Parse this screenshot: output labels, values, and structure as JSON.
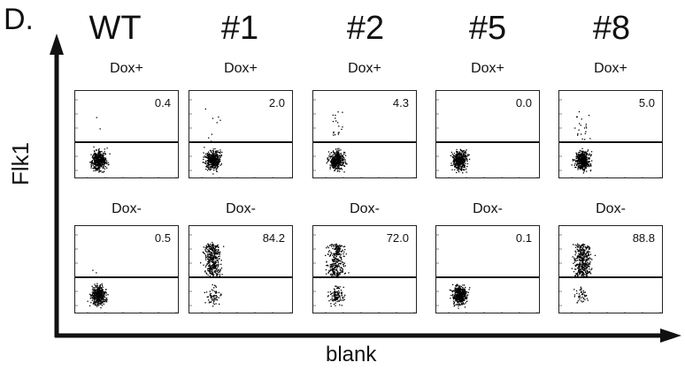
{
  "panel_label": "D.",
  "y_axis_title": "Flk1",
  "x_axis_title": "blank",
  "columns": [
    {
      "title": "WT",
      "top_condition": "Dox+",
      "bottom_condition": "Dox-",
      "top_value": "0.4",
      "bottom_value": "0.5"
    },
    {
      "title": "#1",
      "top_condition": "Dox+",
      "bottom_condition": "Dox-",
      "top_value": "2.0",
      "bottom_value": "84.2"
    },
    {
      "title": "#2",
      "top_condition": "Dox+",
      "bottom_condition": "Dox-",
      "top_value": "4.3",
      "bottom_value": "72.0"
    },
    {
      "title": "#5",
      "top_condition": "Dox+",
      "bottom_condition": "Dox-",
      "top_value": "0.0",
      "bottom_value": "0.1"
    },
    {
      "title": "#8",
      "top_condition": "Dox+",
      "bottom_condition": "Dox-",
      "top_value": "5.0",
      "bottom_value": "88.8"
    }
  ],
  "colors": {
    "ink": "#111111",
    "dots": "#000000"
  }
}
